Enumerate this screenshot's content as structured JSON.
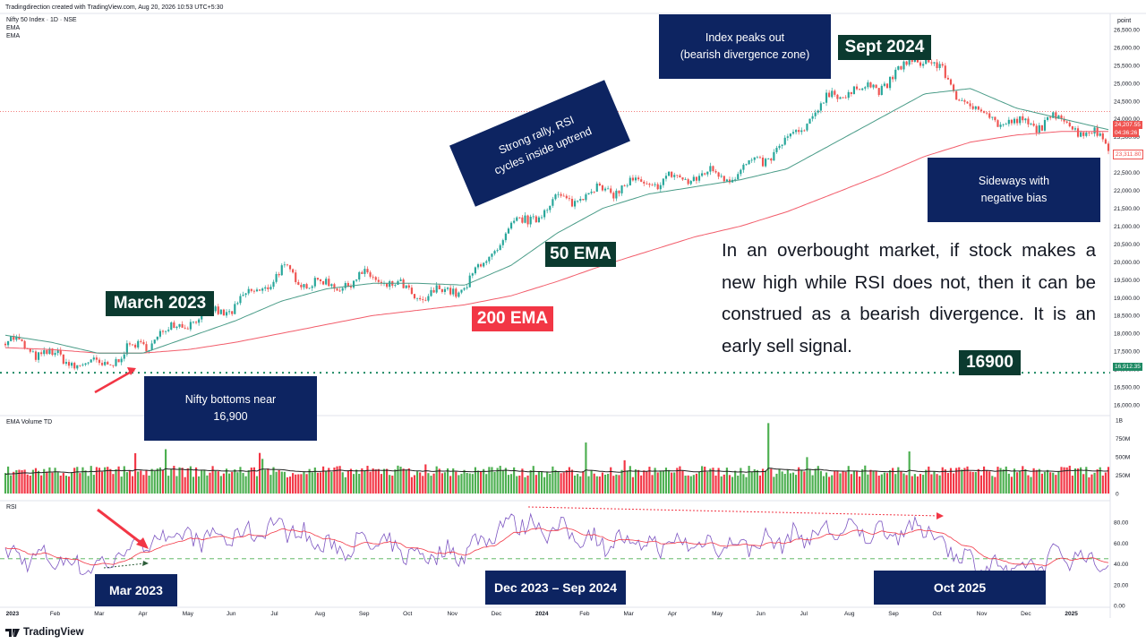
{
  "header": {
    "credit": "Tradingdirection created with TradingView.com, Aug 20, 2026 10:53 UTC+5:30",
    "symbol": "Nifty 50 Index · 1D · NSE",
    "ind1": "EMA",
    "ind2": "EMA",
    "scale_label": "point"
  },
  "footer": {
    "logo": "TradingView"
  },
  "panes": {
    "volume_title": "EMA Volume TD",
    "rsi_title": "RSI"
  },
  "price_axis": [
    "26,500.00",
    "26,000.00",
    "25,500.00",
    "25,000.00",
    "24,500.00",
    "24,000.00",
    "23,500.00",
    "23,000.00",
    "22,500.00",
    "22,000.00",
    "21,500.00",
    "21,000.00",
    "20,500.00",
    "20,000.00",
    "19,500.00",
    "19,000.00",
    "18,500.00",
    "18,000.00",
    "17,500.00",
    "17,000.00",
    "16,500.00",
    "16,000.00"
  ],
  "volume_axis": [
    "1B",
    "750M",
    "500M",
    "250M",
    "0"
  ],
  "rsi_axis": [
    "80.00",
    "60.00",
    "40.00",
    "20.00",
    "0.00"
  ],
  "time_axis": [
    "2023",
    "Feb",
    "Mar",
    "Apr",
    "May",
    "Jun",
    "Jul",
    "Aug",
    "Sep",
    "Oct",
    "Nov",
    "Dec",
    "2024",
    "Feb",
    "Mar",
    "Apr",
    "May",
    "Jun",
    "Jul",
    "Aug",
    "Sep",
    "Oct",
    "Nov",
    "Dec",
    "2025"
  ],
  "price_badges": {
    "p1": "24,207.55",
    "p2": "04:36:26",
    "p3": "23,311.80",
    "p4": "16,912.35"
  },
  "annotations": {
    "peak_box": "Index peaks out\n(bearish divergence zone)",
    "sept": "Sept 2024",
    "rally_box": "Strong rally, RSI\ncycles inside uptrend",
    "sideways_box": "Sideways with\nnegative bias",
    "march": "March 2023",
    "ema50": "50 EMA",
    "ema200": "200 EMA",
    "bottom_box": "Nifty bottoms near\n16,900",
    "level": "16900",
    "note": "In an overbought market, if stock makes a new high while RSI does not, then it can be construed as a bearish divergence. It is an early sell signal.",
    "rsi_mar": "Mar 2023",
    "rsi_dec": "Dec 2023 – Sep 2024",
    "rsi_oct": "Oct 2025"
  },
  "colors": {
    "up": "#26a69a",
    "down": "#ef5350",
    "vol_up": "#4caf50",
    "vol_down": "#f23645",
    "ema50": "#4a9c88",
    "ema200": "#f25d6b",
    "rsi": "#7e57c2",
    "rsi_ma": "#f23645",
    "navy": "#0d2461",
    "dark_green_tag": "#0b3a2f",
    "red_tag": "#f23645"
  },
  "chart_data": {
    "type": "candlestick",
    "title": "Nifty 50 Index · 1D · NSE",
    "x": [
      "2023-01",
      "2023-02",
      "2023-03",
      "2023-04",
      "2023-05",
      "2023-06",
      "2023-07",
      "2023-08",
      "2023-09",
      "2023-10",
      "2023-11",
      "2023-12",
      "2024-01",
      "2024-02",
      "2024-03",
      "2024-04",
      "2024-05",
      "2024-06",
      "2024-07",
      "2024-08",
      "2024-09",
      "2024-10",
      "2024-11",
      "2024-12",
      "2025-01"
    ],
    "series": [
      {
        "name": "Close",
        "values": [
          17800,
          17350,
          17050,
          17700,
          18400,
          18750,
          19700,
          19300,
          19600,
          19000,
          19300,
          20900,
          21700,
          22000,
          22200,
          22400,
          22500,
          23300,
          24700,
          24900,
          25800,
          24300,
          23800,
          24000,
          23300
        ]
      },
      {
        "name": "EMA 50",
        "values": [
          17950,
          17750,
          17450,
          17450,
          17900,
          18350,
          18900,
          19250,
          19400,
          19400,
          19350,
          19900,
          20800,
          21500,
          21900,
          22100,
          22300,
          22600,
          23300,
          24000,
          24700,
          24850,
          24300,
          24000,
          23700
        ]
      },
      {
        "name": "EMA 200",
        "values": [
          17600,
          17550,
          17450,
          17450,
          17550,
          17750,
          18000,
          18250,
          18500,
          18650,
          18800,
          19050,
          19450,
          19900,
          20300,
          20700,
          21000,
          21400,
          21900,
          22400,
          22950,
          23350,
          23550,
          23650,
          23650
        ]
      }
    ],
    "volume": {
      "name": "Volume",
      "approx_level": "250M",
      "ylim": [
        0,
        1000000000
      ]
    },
    "rsi": {
      "name": "RSI",
      "values": [
        48,
        45,
        36,
        62,
        65,
        66,
        78,
        55,
        60,
        48,
        52,
        82,
        72,
        62,
        58,
        60,
        58,
        64,
        72,
        70,
        74,
        42,
        32,
        50,
        40
      ],
      "ylim": [
        0,
        100
      ]
    },
    "ylim": [
      16000,
      26700
    ],
    "support_level": 16900,
    "grid": false,
    "legend": "top-left"
  }
}
